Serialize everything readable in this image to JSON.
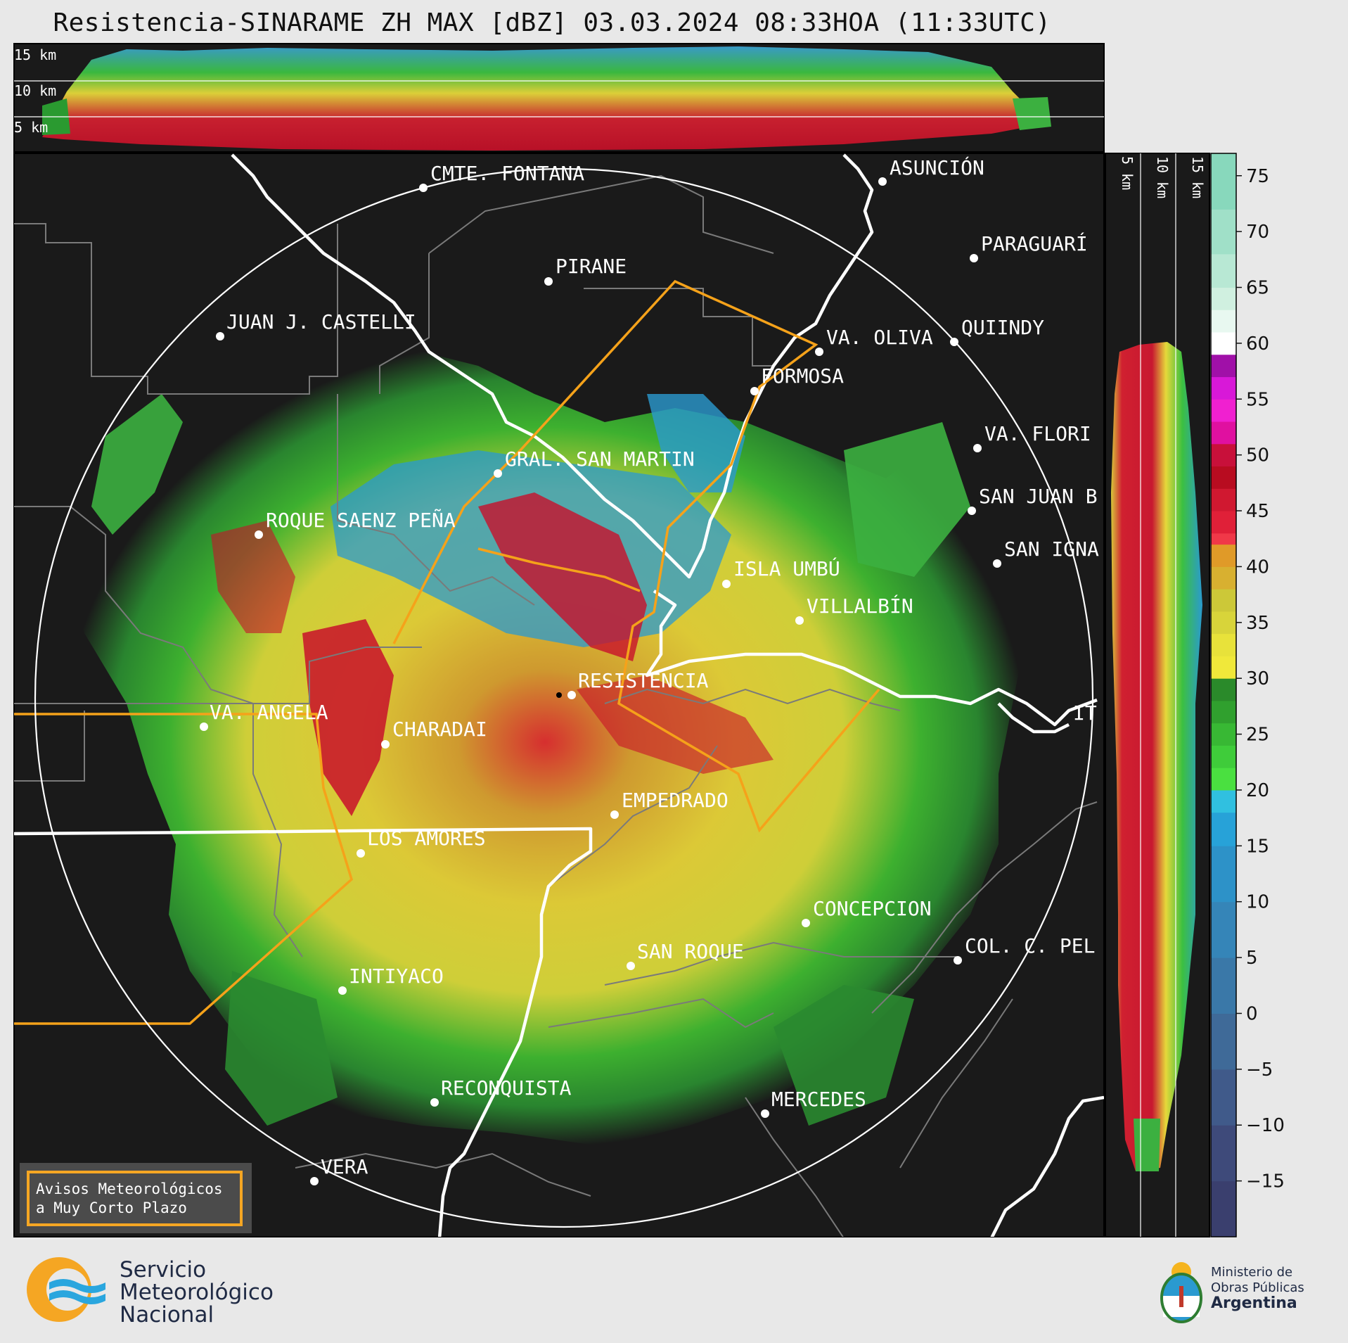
{
  "header": {
    "title": "Resistencia-SINARAME ZH MAX [dBZ] 03.03.2024 08:33HOA (11:33UTC)"
  },
  "top_profile": {
    "height_labels": [
      "15 km",
      "10 km",
      "5 km"
    ]
  },
  "side_profile": {
    "height_labels": [
      "5 km",
      "10 km",
      "15 km"
    ]
  },
  "colorbar": {
    "unit": "dBZ",
    "ticks": [
      "75",
      "70",
      "65",
      "60",
      "55",
      "50",
      "45",
      "40",
      "35",
      "30",
      "25",
      "20",
      "15",
      "10",
      "5",
      "0",
      "−5",
      "−10",
      "−15"
    ]
  },
  "map": {
    "cities": [
      {
        "name": "CMTE. FONTANA"
      },
      {
        "name": "ASUNCIÓN"
      },
      {
        "name": "PIRANE"
      },
      {
        "name": "PARAGUARÍ"
      },
      {
        "name": "JUAN J. CASTELLI"
      },
      {
        "name": "VA. OLIVA"
      },
      {
        "name": "QUIINDY"
      },
      {
        "name": "FORMOSA"
      },
      {
        "name": "VA. FLORI"
      },
      {
        "name": "GRAL. SAN MARTIN"
      },
      {
        "name": "SAN JUAN B"
      },
      {
        "name": "ROQUE SAENZ PEÑA"
      },
      {
        "name": "SAN IGNA"
      },
      {
        "name": "ISLA UMBÚ"
      },
      {
        "name": "VILLALBÍN"
      },
      {
        "name": "RESISTENCIA"
      },
      {
        "name": "VA. ANGELA"
      },
      {
        "name": "CHARADAI"
      },
      {
        "name": "IT"
      },
      {
        "name": "EMPEDRADO"
      },
      {
        "name": "LOS AMORES"
      },
      {
        "name": "CONCEPCION"
      },
      {
        "name": "SAN ROQUE"
      },
      {
        "name": "COL. C. PEL"
      },
      {
        "name": "INTIYACO"
      },
      {
        "name": "RECONQUISTA"
      },
      {
        "name": "MERCEDES"
      },
      {
        "name": "VERA"
      }
    ],
    "notice_box": {
      "line1": "Avisos Meteorológicos",
      "line2": "a Muy Corto Plazo"
    }
  },
  "footer": {
    "smn": [
      "Servicio",
      "Meteorológico",
      "Nacional"
    ],
    "ministry": [
      "Ministerio de",
      "Obras Públicas",
      "Argentina"
    ]
  },
  "colors": {
    "map_bg": "#1a1a1a",
    "accent_orange": "#f5a623",
    "warning_polygon": "#f5a21a",
    "border_white": "#ffffff",
    "admin_gray": "#7a7a7a"
  }
}
